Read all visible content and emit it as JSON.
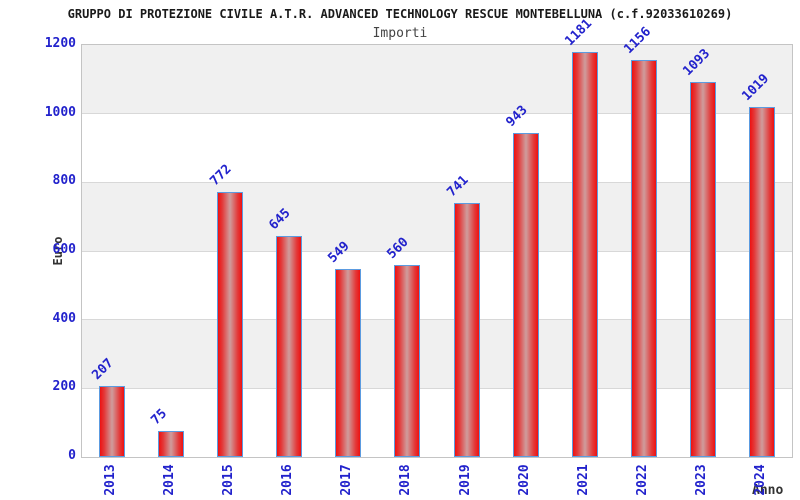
{
  "title": "GRUPPO DI PROTEZIONE CIVILE A.T.R. ADVANCED TECHNOLOGY RESCUE MONTEBELLUNA (c.f.92033610269)",
  "subtitle": "Importi",
  "chart_data": {
    "type": "bar",
    "categories": [
      "2013",
      "2014",
      "2015",
      "2016",
      "2017",
      "2018",
      "2019",
      "2020",
      "2021",
      "2022",
      "2023",
      "2024"
    ],
    "values": [
      207,
      75,
      772,
      645,
      549,
      560,
      741,
      943,
      1181,
      1156,
      1093,
      1019
    ],
    "title": "GRUPPO DI PROTEZIONE CIVILE A.T.R. ADVANCED TECHNOLOGY RESCUE MONTEBELLUNA (c.f.92033610269)",
    "subtitle": "Importi",
    "xlabel": "Anno",
    "ylabel": "Euro",
    "ylim": [
      0,
      1200
    ],
    "yticks": [
      0,
      200,
      400,
      600,
      800,
      1000,
      1200
    ],
    "grid": true,
    "legend": "none",
    "colors": {
      "bar_fill_edge": "#ee1111",
      "bar_fill_center": "#cf9d9d",
      "bar_border": "#5b9be0",
      "value_label": "#2222cc",
      "tick_label": "#2222cc",
      "band_fill": "#f0f0f0",
      "gridline": "#d8d8d8",
      "plot_border": "#c4c4c4",
      "title_color": "#1a1a1a",
      "subtitle_color": "#444444"
    }
  }
}
